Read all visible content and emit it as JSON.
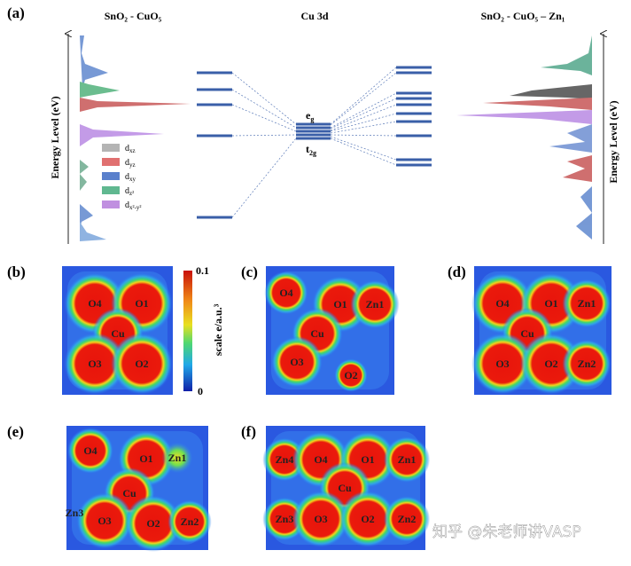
{
  "panel_a": {
    "label": "(a)",
    "left_title": "SnO₂ - CuO₅",
    "center_title": "Cu 3d",
    "right_title": "SnO₂ - CuO₅ – Zn₁",
    "y_axis_label": "Energy Level (eV)",
    "eg": {
      "main": "e",
      "sub": "g"
    },
    "t2g": {
      "main": "t",
      "sub": "2g"
    },
    "legend": [
      {
        "main": "d",
        "sub": "xz"
      },
      {
        "main": "d",
        "sub": "yz"
      },
      {
        "main": "d",
        "sub": "xy"
      },
      {
        "main": "d",
        "sub": "z²"
      },
      {
        "main": "d",
        "sub": "x²-y²"
      }
    ]
  },
  "colorbar": {
    "max": "0.1",
    "min": "0",
    "label": "scale e/a.u.³"
  },
  "panels": [
    {
      "label": "(b)",
      "atoms": [
        "O4",
        "O1",
        "Cu",
        "O3",
        "O2"
      ]
    },
    {
      "label": "(c)",
      "atoms": [
        "O4",
        "O1",
        "Zn1",
        "Cu",
        "O3",
        "O2"
      ]
    },
    {
      "label": "(d)",
      "atoms": [
        "O4",
        "O1",
        "Zn1",
        "Cu",
        "O3",
        "O2",
        "Zn2"
      ]
    },
    {
      "label": "(e)",
      "atoms": [
        "O4",
        "O1",
        "Zn1",
        "Cu",
        "O3",
        "O2",
        "Zn2",
        "Zn3"
      ]
    },
    {
      "label": "(f)",
      "atoms": [
        "Zn4",
        "O4",
        "O1",
        "Zn1",
        "Cu",
        "Zn3",
        "O3",
        "O2",
        "Zn2"
      ]
    }
  ],
  "watermark": "知乎 @朱老师讲VASP"
}
